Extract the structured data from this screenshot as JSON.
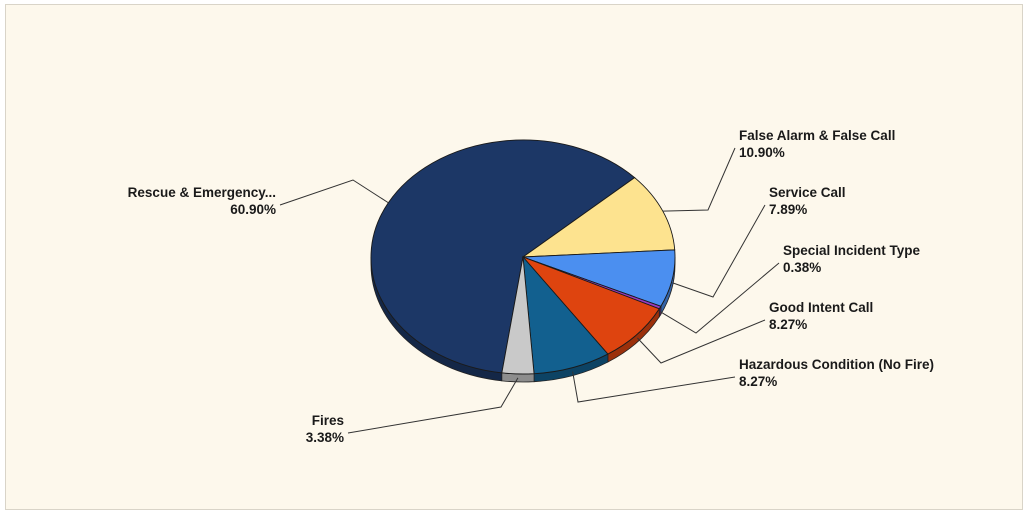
{
  "chart_data": {
    "type": "pie",
    "title": "",
    "slices": [
      {
        "label": "Rescue & Emergency...",
        "value_text": "60.90%",
        "value": 60.9,
        "color": "#1c3766"
      },
      {
        "label": "False Alarm & False Call",
        "value_text": "10.90%",
        "value": 10.9,
        "color": "#fde38f"
      },
      {
        "label": "Service Call",
        "value_text": "7.89%",
        "value": 7.89,
        "color": "#4b8ff0"
      },
      {
        "label": "Special Incident Type",
        "value_text": "0.38%",
        "value": 0.38,
        "color": "#9a3bbf"
      },
      {
        "label": "Good Intent Call",
        "value_text": "8.27%",
        "value": 8.27,
        "color": "#de440f"
      },
      {
        "label": "Hazardous Condition (No Fire)",
        "value_text": "8.27%",
        "value": 8.27,
        "color": "#12608f"
      },
      {
        "label": "Fires",
        "value_text": "3.38%",
        "value": 3.38,
        "color": "#c9c9c9"
      }
    ],
    "legend": "none",
    "style": "3d-tilted"
  }
}
